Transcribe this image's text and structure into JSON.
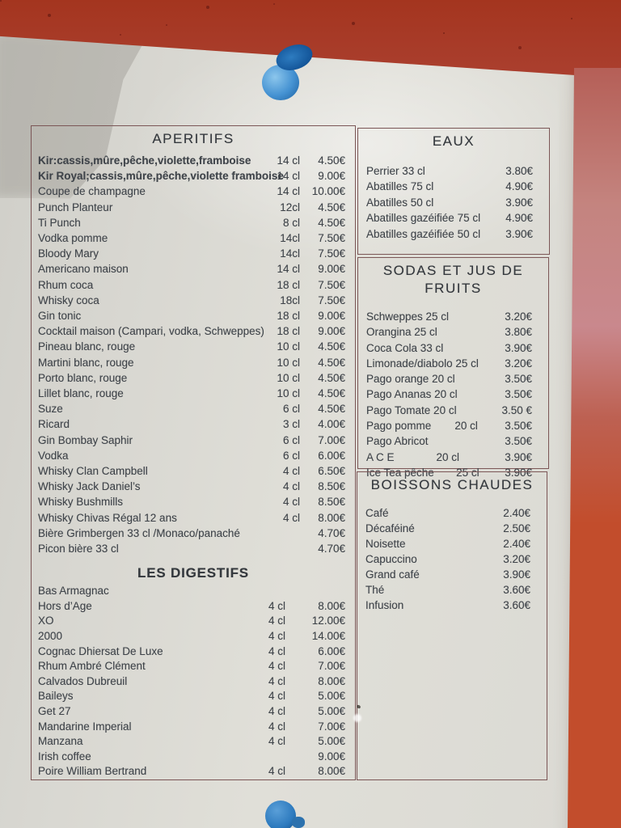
{
  "scene": {
    "wall_color": "#a93a28",
    "wall_pink_strip_color": "#c9888d",
    "wall_orange_strip_color": "#c24d2c",
    "paper_color": "#dbdad4",
    "box_border_color": "#7b5656",
    "pin_color": "#2d7abe",
    "objects": [
      "push-pin-top",
      "push-pin-bottom"
    ]
  },
  "menu": {
    "aperitifs": {
      "title": "APERITIFS",
      "items": [
        {
          "name": "Kir:cassis,mûre,pêche,violette,framboise",
          "size": "14 cl",
          "price": "4.50€",
          "bold": true
        },
        {
          "name": "Kir Royal;cassis,mûre,pêche,violette framboise",
          "size": "14 cl",
          "price": "9.00€",
          "bold": true
        },
        {
          "name": "Coupe de champagne",
          "size": "14 cl",
          "price": "10.00€"
        },
        {
          "name": "Punch Planteur",
          "size": "12cl",
          "price": "4.50€"
        },
        {
          "name": "Ti Punch",
          "size": "8 cl",
          "price": "4.50€"
        },
        {
          "name": "Vodka pomme",
          "size": "14cl",
          "price": "7.50€"
        },
        {
          "name": "Bloody Mary",
          "size": "14cl",
          "price": "7.50€"
        },
        {
          "name": "Americano maison",
          "size": "14 cl",
          "price": "9.00€"
        },
        {
          "name": "Rhum coca",
          "size": "18 cl",
          "price": "7.50€"
        },
        {
          "name": "Whisky coca",
          "size": "18cl",
          "price": "7.50€"
        },
        {
          "name": "Gin tonic",
          "size": "18 cl",
          "price": "9.00€"
        },
        {
          "name": "Cocktail maison (Campari, vodka, Schweppes)",
          "size": "18 cl",
          "price": "9.00€"
        },
        {
          "name": "Pineau blanc, rouge",
          "size": "10 cl",
          "price": "4.50€"
        },
        {
          "name": "Martini blanc, rouge",
          "size": "10 cl",
          "price": "4.50€"
        },
        {
          "name": "Porto blanc, rouge",
          "size": "10 cl",
          "price": "4.50€"
        },
        {
          "name": "Lillet blanc, rouge",
          "size": "10 cl",
          "price": "4.50€"
        },
        {
          "name": "Suze",
          "size": "6 cl",
          "price": "4.50€"
        },
        {
          "name": "Ricard",
          "size": "3 cl",
          "price": "4.00€"
        },
        {
          "name": "Gin Bombay Saphir",
          "size": "6 cl",
          "price": "7.00€"
        },
        {
          "name": "Vodka",
          "size": "6 cl",
          "price": "6.00€"
        },
        {
          "name": "Whisky Clan Campbell",
          "size": "4 cl",
          "price": "6.50€"
        },
        {
          "name": "Whisky Jack Daniel’s",
          "size": "4 cl",
          "price": "8.50€"
        },
        {
          "name": "Whisky Bushmills",
          "size": "4 cl",
          "price": "8.50€"
        },
        {
          "name": "Whisky Chivas Régal 12 ans",
          "size": "4 cl",
          "price": "8.00€"
        },
        {
          "name": "Bière Grimbergen 33 cl /Monaco/panaché",
          "size": "",
          "price": "4.70€"
        },
        {
          "name": "Picon bière 33 cl",
          "size": "",
          "price": "4.70€"
        }
      ]
    },
    "digestifs": {
      "title": "LES DIGESTIFS",
      "items": [
        {
          "name": "Bas Armagnac",
          "size": "",
          "price": ""
        },
        {
          "name": "Hors d’Age",
          "size": "4 cl",
          "price": "8.00€"
        },
        {
          "name": "XO",
          "size": "4 cl",
          "price": "12.00€"
        },
        {
          "name": "2000",
          "size": "4 cl",
          "price": "14.00€"
        },
        {
          "name": "Cognac Dhiersat De Luxe",
          "size": "4 cl",
          "price": "6.00€"
        },
        {
          "name": "Rhum Ambré Clément",
          "size": "4 cl",
          "price": "7.00€"
        },
        {
          "name": "Calvados Dubreuil",
          "size": "4 cl",
          "price": "8.00€"
        },
        {
          "name": "Baileys",
          "size": "4 cl",
          "price": "5.00€"
        },
        {
          "name": "Get 27",
          "size": "4 cl",
          "price": "5.00€"
        },
        {
          "name": "Mandarine Imperial",
          "size": "4 cl",
          "price": "7.00€"
        },
        {
          "name": "Manzana",
          "size": "4 cl",
          "price": "5.00€"
        },
        {
          "name": "Irish coffee",
          "size": "",
          "price": "9.00€"
        },
        {
          "name": "Poire William Bertrand",
          "size": "4 cl",
          "price": "8.00€"
        }
      ]
    },
    "eaux": {
      "title": "EAUX",
      "items": [
        {
          "name": "Perrier 33 cl",
          "size": "",
          "price": "3.80€"
        },
        {
          "name": "Abatilles 75 cl",
          "size": "",
          "price": "4.90€"
        },
        {
          "name": "Abatilles 50 cl",
          "size": "",
          "price": "3.90€"
        },
        {
          "name": "Abatilles gazéifiée 75 cl",
          "size": "",
          "price": "4.90€"
        },
        {
          "name": "Abatilles gazéifiée 50 cl",
          "size": "",
          "price": "3.90€"
        }
      ]
    },
    "sodas": {
      "title": "SODAS ET JUS DE FRUITS",
      "items": [
        {
          "name": "Schweppes 25 cl",
          "size": "",
          "price": "3.20€"
        },
        {
          "name": "Orangina 25 cl",
          "size": "",
          "price": "3.80€"
        },
        {
          "name": "Coca Cola 33 cl",
          "size": "",
          "price": "3.90€"
        },
        {
          "name": "Limonade/diabolo 25 cl",
          "size": "",
          "price": "3.20€"
        },
        {
          "name": "Pago orange 20 cl",
          "size": "",
          "price": "3.50€"
        },
        {
          "name": "Pago Ananas 20 cl",
          "size": "",
          "price": "3.50€"
        },
        {
          "name": "Pago Tomate 20 cl",
          "size": "",
          "price": "3.50 €"
        },
        {
          "name": "Pago pomme",
          "size": "20 cl",
          "price": "3.50€"
        },
        {
          "name": "Pago Abricot",
          "size": "",
          "price": "3.50€"
        },
        {
          "name": "A C E",
          "size": "20 cl",
          "price": "3.90€"
        },
        {
          "name": "Ice Tea pêche",
          "size": "25 cl",
          "price": "3.90€"
        }
      ]
    },
    "boissons_chaudes": {
      "title": "BOISSONS CHAUDES",
      "items": [
        {
          "name": "Café",
          "size": "",
          "price": "2.40€"
        },
        {
          "name": "Décaféiné",
          "size": "",
          "price": "2.50€"
        },
        {
          "name": "Noisette",
          "size": "",
          "price": "2.40€"
        },
        {
          "name": "Capuccino",
          "size": "",
          "price": "3.20€"
        },
        {
          "name": "Grand café",
          "size": "",
          "price": "3.90€"
        },
        {
          "name": "Thé",
          "size": "",
          "price": "3.60€"
        },
        {
          "name": "Infusion",
          "size": "",
          "price": "3.60€"
        }
      ]
    }
  }
}
